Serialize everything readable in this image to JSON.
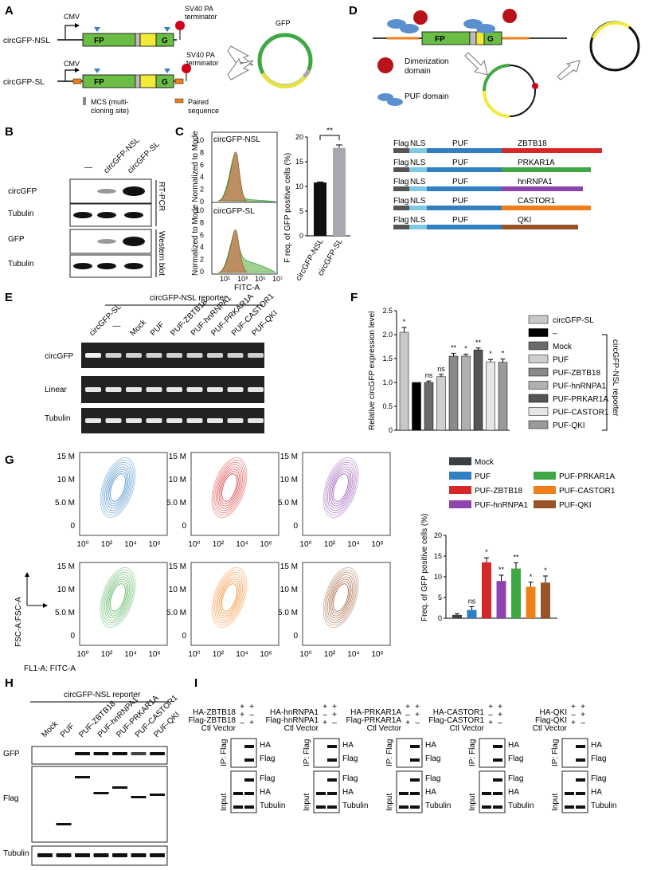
{
  "panels": {
    "A": {
      "letter": "A",
      "cmv": "CMV",
      "construct1": "circGFP-NSL",
      "construct2": "circGFP-SL",
      "fp": "FP",
      "g": "G",
      "terminator": "SV40 PA terminator",
      "terminator_l1": "SV40 PA",
      "terminator_l2": "terminator",
      "circle_label": "GFP",
      "legend_mcs_l1": "MCS (multi-",
      "legend_mcs_l2": "cloning site)",
      "legend_paired_l1": "Paired",
      "legend_paired_l2": "sequence"
    },
    "B": {
      "letter": "B",
      "lanes": [
        "—",
        "circGFP-NSL",
        "circGFP-SL"
      ],
      "rows": [
        "circGFP",
        "Tubulin",
        "GFP",
        "Tubulin"
      ],
      "method1": "RT-PCR",
      "method2": "Western blot"
    },
    "C": {
      "letter": "C",
      "hist1_label": "circGFP-NSL",
      "hist2_label": "circGFP-SL",
      "ylabel": "Normalized to Mode Normalized to Mode",
      "xlabel": "FITC-A",
      "yticks": [
        "10",
        "8",
        "6",
        "4",
        "2",
        "0"
      ],
      "xticks": [
        "10¹",
        "10³",
        "10⁵",
        "10⁷"
      ],
      "sig": "**"
    },
    "D": {
      "letter": "D",
      "fp": "FP",
      "g": "G",
      "dimer": "Dimerization",
      "dimer2": "domain",
      "puf": "PUF domain",
      "constructs": [
        {
          "flag": "Flag",
          "nls": "NLS",
          "puf": "PUF",
          "fusion": "ZBTB18",
          "color": "#d62728"
        },
        {
          "flag": "Flag",
          "nls": "NLS",
          "puf": "PUF",
          "fusion": "PRKAR1A",
          "color": "#3fa844"
        },
        {
          "flag": "Flag",
          "nls": "NLS",
          "puf": "PUF",
          "fusion": "hnRNPA1",
          "color": "#8e44ad"
        },
        {
          "flag": "Flag",
          "nls": "NLS",
          "puf": "PUF",
          "fusion": "CASTOR1",
          "color": "#f07f1a"
        },
        {
          "flag": "Flag",
          "nls": "NLS",
          "puf": "PUF",
          "fusion": "QKI",
          "color": "#9a5327"
        }
      ]
    },
    "E": {
      "letter": "E",
      "reporter": "circGFP-NSL reporter",
      "lanes": [
        "circGFP-SL",
        "—",
        "Mock",
        "PUF",
        "PUF-ZBTB18",
        "PUF-hnRNPA1",
        "PUF-PRKAR1A",
        "PUF-CASTOR1",
        "PUF-QKI"
      ],
      "rows": [
        "circGFP",
        "Linear",
        "Tubulin"
      ]
    },
    "F": {
      "letter": "F",
      "reporter": "circGFP-NSL reporter",
      "legend": [
        "circGFP-SL",
        "–",
        "Mock",
        "PUF",
        "PUF-ZBTB18",
        "PUF-hnRNPA1",
        "PUF-PRKAR1A",
        "PUF-CASTOR1",
        "PUF-QKI"
      ]
    },
    "G": {
      "letter": "G",
      "yticks": [
        "15 M",
        "10 M",
        "5.0 M",
        "0"
      ],
      "xticks": [
        "10⁰",
        "10²",
        "10⁴",
        "10⁶"
      ],
      "yaxis": "FSC-A:FSC-A",
      "xaxis": "FL1-A: FITC-A",
      "legend_col1": [
        "Mock",
        "PUF",
        "PUF-ZBTB18",
        "PUF-hnRNPA1"
      ],
      "legend_col2": [
        "PUF-PRKAR1A",
        "PUF-CASTOR1",
        "PUF-QKI"
      ],
      "sigs": [
        "",
        "ns",
        "*",
        "**",
        "**",
        "*",
        "*"
      ]
    },
    "H": {
      "letter": "H",
      "reporter": "circGFP-NSL reporter",
      "lanes": [
        "Mock",
        "PUF",
        "PUF-ZBTB18",
        "PUF-hnRNPA1",
        "PUF-PRKAR1A",
        "PUF-CASTOR1",
        "PUF-QKI"
      ],
      "rows": [
        "GFP",
        "Flag",
        "Tubulin"
      ]
    },
    "I": {
      "letter": "I",
      "blocks": [
        {
          "ha": "HA-ZBTB18",
          "flag": "Flag-ZBTB18",
          "ctl": "Ctl Vector",
          "r1": [
            "+",
            "+"
          ],
          "r2": [
            "+",
            "–"
          ],
          "r3": [
            "–",
            "+"
          ]
        },
        {
          "ha": "HA-hnRNPA1",
          "flag": "Flag-hnRNPA1",
          "ctl": "Ctl Vector",
          "r1": [
            "+",
            "+"
          ],
          "r2": [
            "–",
            "+"
          ],
          "r3": [
            "+",
            "–"
          ]
        },
        {
          "ha": "HA-PRKAR1A",
          "flag": "Flag-PRKAR1A",
          "ctl": "Ctl Vector",
          "r1": [
            "+",
            "+"
          ],
          "r2": [
            "–",
            "+"
          ],
          "r3": [
            "+",
            "–"
          ]
        },
        {
          "ha": "HA-CASTOR1",
          "flag": "Flag-CASTOR1",
          "ctl": "Ctl Vector",
          "r1": [
            "+",
            "+"
          ],
          "r2": [
            "–",
            "+"
          ],
          "r3": [
            "+",
            "–"
          ]
        },
        {
          "ha": "HA-QKI",
          "flag": "Flag-QKI",
          "ctl": "Ctl Vector",
          "r1": [
            "+",
            "+"
          ],
          "r2": [
            "–",
            "+"
          ],
          "r3": [
            "+",
            "–"
          ]
        }
      ],
      "ip": "IP: Flag",
      "input": "Input",
      "ip_rows": [
        "HA",
        "Flag"
      ],
      "input_rows": [
        "Flag",
        "HA",
        "Tubulin"
      ]
    }
  },
  "chart_data": [
    {
      "type": "bar",
      "panel": "C",
      "categories": [
        "circGFP-NSL",
        "circGFP-SL"
      ],
      "values": [
        10.8,
        17.8
      ],
      "errors": [
        0.1,
        0.6
      ],
      "colors": [
        "#111111",
        "#a8a8b0"
      ],
      "ylabel": "F req. of GFP positive cells (%)",
      "yticks": [
        "0",
        "5",
        "10",
        "15",
        "20"
      ],
      "ylim": [
        0,
        20
      ],
      "significance": "**"
    },
    {
      "type": "bar",
      "panel": "F",
      "categories": [
        "circGFP-SL",
        "–",
        "Mock",
        "PUF",
        "PUF-ZBTB18",
        "PUF-hnRNPA1",
        "PUF-PRKAR1A",
        "PUF-CASTOR1",
        "PUF-QKI"
      ],
      "values": [
        2.05,
        1.0,
        1.0,
        1.12,
        1.55,
        1.55,
        1.68,
        1.43,
        1.42
      ],
      "errors": [
        0.1,
        0.0,
        0.03,
        0.05,
        0.06,
        0.04,
        0.04,
        0.05,
        0.07
      ],
      "significance": [
        "*",
        "",
        "ns",
        "ns",
        "**",
        "*",
        "**",
        "*",
        "*"
      ],
      "colors": [
        "#c8c8c8",
        "#000000",
        "#6b6b6b",
        "#cfcfcf",
        "#8a8a8a",
        "#b0b0b0",
        "#555555",
        "#e6e6e6",
        "#9a9a9a"
      ],
      "ylabel": "Relative circGFP expression level",
      "yticks": [
        "0",
        "0.5",
        "1.0",
        "1.5",
        "2.0",
        "2.5"
      ],
      "ylim": [
        0,
        2.5
      ]
    },
    {
      "type": "bar",
      "panel": "G",
      "categories": [
        "Mock",
        "PUF",
        "PUF-ZBTB18",
        "PUF-hnRNPA1",
        "PUF-PRKAR1A",
        "PUF-CASTOR1",
        "PUF-QKI"
      ],
      "values": [
        0.8,
        2.0,
        13.5,
        9.0,
        12.0,
        7.6,
        8.6
      ],
      "errors": [
        0.3,
        0.8,
        1.1,
        1.4,
        1.4,
        1.1,
        1.6
      ],
      "colors": [
        "#3a3f44",
        "#2f7fc1",
        "#d62728",
        "#8e44ad",
        "#3fa844",
        "#f07f1a",
        "#9a5327"
      ],
      "ylabel": "Freq. of GFP positive cells (%)",
      "yticks": [
        "0",
        "5",
        "10",
        "15",
        "20"
      ],
      "ylim": [
        0,
        20
      ]
    }
  ]
}
